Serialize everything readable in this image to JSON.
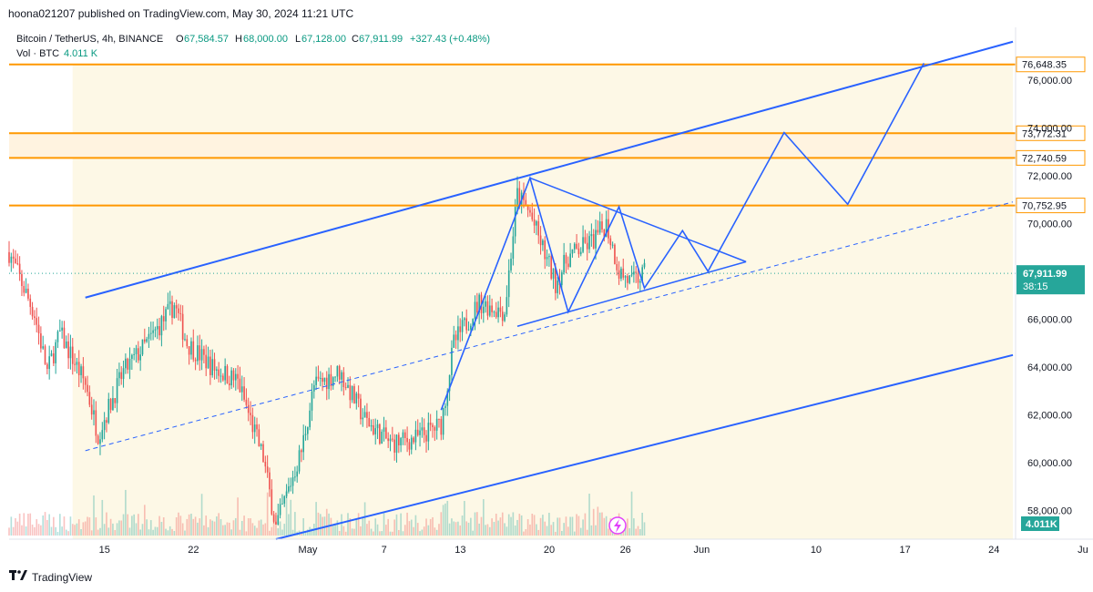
{
  "header": {
    "publish_line": "hoona021207 published on TradingView.com, May 30, 2024 11:21 UTC"
  },
  "legend": {
    "symbol": "Bitcoin / TetherUS, 4h, BINANCE",
    "o_label": "O",
    "o_value": "67,584.57",
    "h_label": "H",
    "h_value": "68,000.00",
    "l_label": "L",
    "l_value": "67,128.00",
    "c_label": "C",
    "c_value": "67,911.99",
    "change": "+327.43 (+0.48%)",
    "vol_label": "Vol · BTC",
    "vol_value": "4.011 K"
  },
  "price_axis": {
    "ticks": [
      "76,000.00",
      "74,000.00",
      "72,000.00",
      "70,000.00",
      "66,000.00",
      "64,000.00",
      "62,000.00",
      "60,000.00",
      "58,000.00"
    ],
    "level_labels": [
      "76,648.35",
      "73,772.31",
      "72,740.59",
      "70,752.95"
    ],
    "last_price": "67,911.99",
    "countdown": "38:15",
    "volume_badge": "4.011K"
  },
  "time_axis": {
    "labels": [
      "15",
      "22",
      "May",
      "7",
      "13",
      "20",
      "26",
      "Jun",
      "10",
      "17",
      "24",
      "Ju"
    ]
  },
  "footer": {
    "brand": "TradingView"
  },
  "colors": {
    "up": "#26a69a",
    "down": "#ef5350",
    "channel": "#2962ff",
    "level": "#ff9800",
    "zone": "#fff3e0",
    "shade": "#fdf8e6",
    "last_price": "#26a69a"
  },
  "chart_data": {
    "type": "candlestick",
    "symbol": "Bitcoin / TetherUS",
    "interval": "4h",
    "exchange": "BINANCE",
    "y_range": [
      56800,
      78200
    ],
    "x_range": [
      "2024-04-10",
      "2024-07-01"
    ],
    "horizontal_levels": [
      76648.35,
      73772.31,
      72740.59,
      70752.95
    ],
    "highlight_zone": [
      72740.59,
      73772.31
    ],
    "last_price": 67911.99,
    "anchors": [
      {
        "date": "2024-04-10",
        "close": 68800
      },
      {
        "date": "2024-04-12",
        "close": 66200
      },
      {
        "date": "2024-04-13",
        "close": 63800
      },
      {
        "date": "2024-04-14",
        "close": 65400
      },
      {
        "date": "2024-04-16",
        "close": 63300
      },
      {
        "date": "2024-04-17",
        "close": 61200
      },
      {
        "date": "2024-04-19",
        "close": 63800
      },
      {
        "date": "2024-04-21",
        "close": 65100
      },
      {
        "date": "2024-04-23",
        "close": 66600
      },
      {
        "date": "2024-04-24",
        "close": 65000
      },
      {
        "date": "2024-04-26",
        "close": 64000
      },
      {
        "date": "2024-04-28",
        "close": 63400
      },
      {
        "date": "2024-04-30",
        "close": 60200
      },
      {
        "date": "2024-05-01",
        "close": 57300
      },
      {
        "date": "2024-05-03",
        "close": 60500
      },
      {
        "date": "2024-05-04",
        "close": 63200
      },
      {
        "date": "2024-05-06",
        "close": 63800
      },
      {
        "date": "2024-05-08",
        "close": 61800
      },
      {
        "date": "2024-05-10",
        "close": 60800
      },
      {
        "date": "2024-05-12",
        "close": 61000
      },
      {
        "date": "2024-05-14",
        "close": 61600
      },
      {
        "date": "2024-05-15",
        "close": 65000
      },
      {
        "date": "2024-05-17",
        "close": 66700
      },
      {
        "date": "2024-05-19",
        "close": 66300
      },
      {
        "date": "2024-05-20",
        "close": 71200
      },
      {
        "date": "2024-05-21",
        "close": 70400
      },
      {
        "date": "2024-05-23",
        "close": 67500
      },
      {
        "date": "2024-05-24",
        "close": 68600
      },
      {
        "date": "2024-05-26",
        "close": 69300
      },
      {
        "date": "2024-05-27",
        "close": 70000
      },
      {
        "date": "2024-05-28",
        "close": 68000
      },
      {
        "date": "2024-05-29",
        "close": 67500
      },
      {
        "date": "2024-05-30",
        "close": 67912
      }
    ],
    "drawings": {
      "channel_upper": [
        [
          "2024-04-16",
          66900
        ],
        [
          "2024-06-28",
          77600
        ]
      ],
      "channel_lower": [
        [
          "2024-05-01",
          56800
        ],
        [
          "2024-06-28",
          64500
        ]
      ],
      "channel_mid": [
        [
          "2024-04-16",
          60500
        ],
        [
          "2024-06-28",
          70900
        ]
      ],
      "triangle_upper": [
        [
          "2024-05-21",
          71900
        ],
        [
          "2024-06-07",
          68400
        ]
      ],
      "triangle_lower": [
        [
          "2024-05-20",
          65700
        ],
        [
          "2024-06-07",
          68400
        ]
      ],
      "projection": [
        [
          "2024-05-14",
          62200
        ],
        [
          "2024-05-21",
          71900
        ],
        [
          "2024-05-24",
          66300
        ],
        [
          "2024-05-28",
          70700
        ],
        [
          "2024-05-30",
          67300
        ],
        [
          "2024-06-02",
          69700
        ],
        [
          "2024-06-04",
          68000
        ],
        [
          "2024-06-10",
          73800
        ],
        [
          "2024-06-15",
          70800
        ],
        [
          "2024-06-21",
          76700
        ]
      ]
    }
  }
}
